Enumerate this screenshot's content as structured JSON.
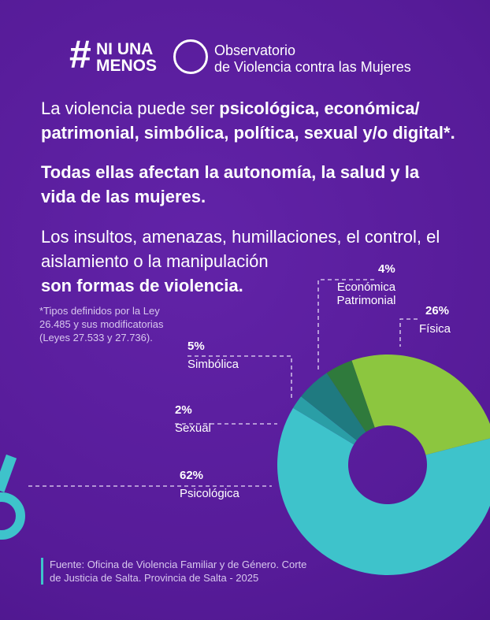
{
  "header": {
    "hashtag": "#",
    "logo_line1": "NI UNA",
    "logo_line2": "MENOS",
    "org_line1": "Observatorio",
    "org_line2": "de Violencia contra las Mujeres"
  },
  "text": {
    "p1_regular": "La violencia puede ser ",
    "p1_bold": "psicológica, económica/ patrimonial, simbólica, política, sexual y/o digital*.",
    "p2": "Todas ellas afectan la autonomía, la salud y la vida de las mujeres.",
    "p3_regular": "Los insultos, amenazas, humillaciones, el control, el aislamiento o la manipulación",
    "p3_bold": "son formas de violencia.",
    "footnote": "*Tipos definidos por la Ley 26.485 y sus modificatorias (Leyes 27.533 y 27.736)."
  },
  "chart_data": {
    "type": "donut",
    "categories": [
      "Física",
      "Psicológica",
      "Sexual",
      "Simbólica",
      "Económica Patrimonial"
    ],
    "values": [
      26,
      62,
      2,
      5,
      4
    ],
    "value_labels": [
      "26%",
      "62%",
      "2%",
      "5%",
      "4%"
    ],
    "colors": [
      "#8cc63f",
      "#3ec3cb",
      "#2a9ea6",
      "#1f7a80",
      "#2f7a3c"
    ]
  },
  "source": "Fuente: Oficina de Violencia Familiar y de Género. Corte de Justicia de Salta. Provincia de Salta - 2025"
}
